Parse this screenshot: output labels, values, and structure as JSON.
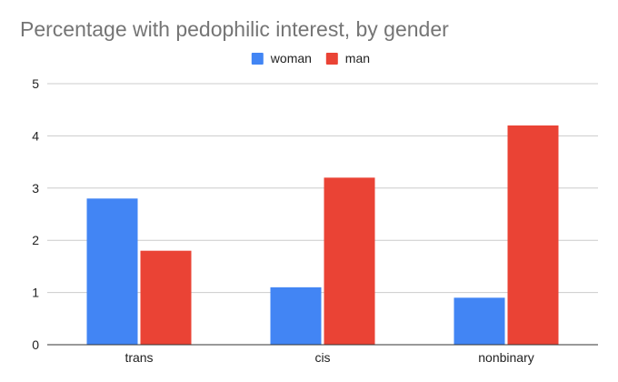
{
  "chart_data": {
    "type": "bar",
    "title": "Percentage with pedophilic interest, by gender",
    "xlabel": "",
    "ylabel": "",
    "categories": [
      "trans",
      "cis",
      "nonbinary"
    ],
    "series": [
      {
        "name": "woman",
        "color": "#4285f4",
        "values": [
          2.8,
          1.1,
          0.9
        ]
      },
      {
        "name": "man",
        "color": "#ea4335",
        "values": [
          1.8,
          3.2,
          4.2
        ]
      }
    ],
    "ylim": [
      0,
      5
    ],
    "yticks": [
      "0",
      "1",
      "2",
      "3",
      "4",
      "5"
    ],
    "grid": true,
    "legend_position": "top-center"
  }
}
